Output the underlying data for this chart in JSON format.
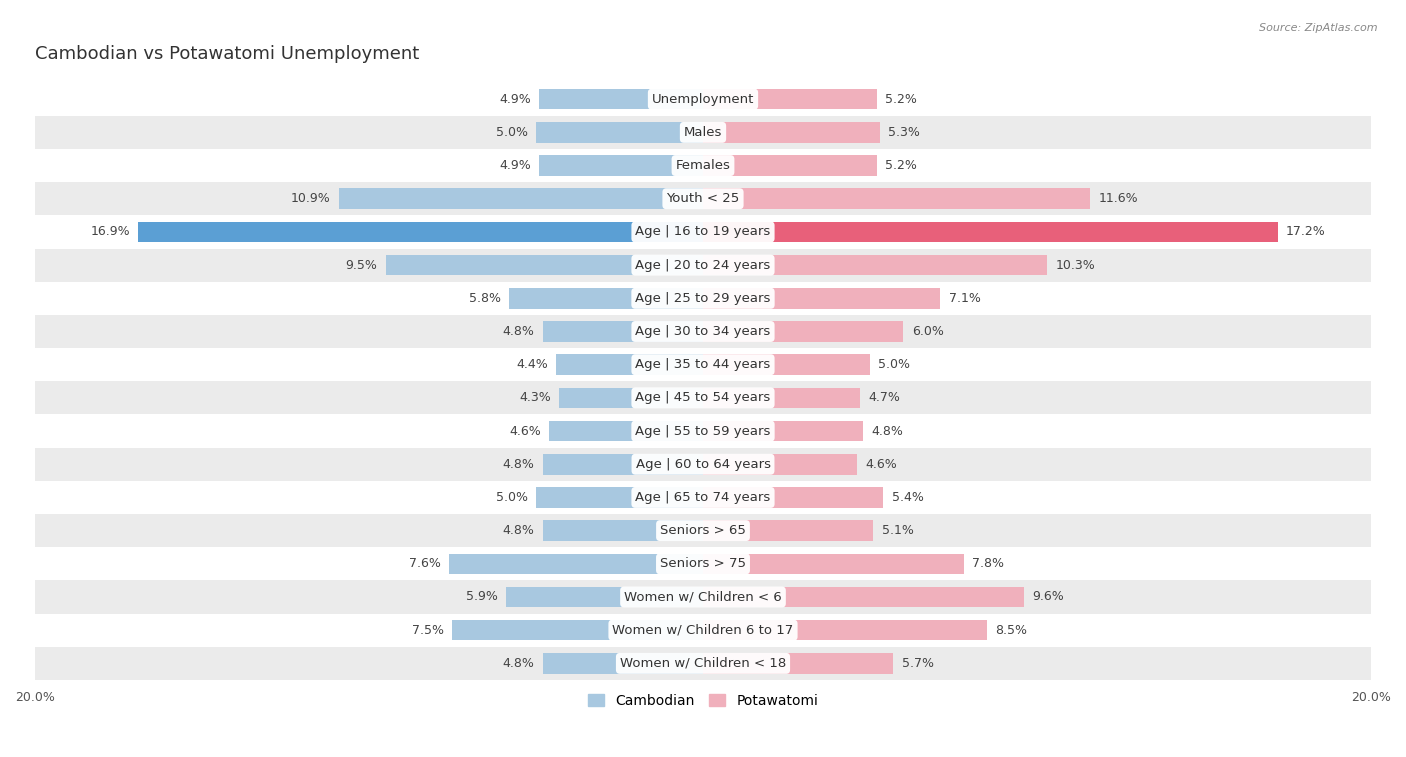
{
  "title": "Cambodian vs Potawatomi Unemployment",
  "source": "Source: ZipAtlas.com",
  "categories": [
    "Unemployment",
    "Males",
    "Females",
    "Youth < 25",
    "Age | 16 to 19 years",
    "Age | 20 to 24 years",
    "Age | 25 to 29 years",
    "Age | 30 to 34 years",
    "Age | 35 to 44 years",
    "Age | 45 to 54 years",
    "Age | 55 to 59 years",
    "Age | 60 to 64 years",
    "Age | 65 to 74 years",
    "Seniors > 65",
    "Seniors > 75",
    "Women w/ Children < 6",
    "Women w/ Children 6 to 17",
    "Women w/ Children < 18"
  ],
  "cambodian": [
    4.9,
    5.0,
    4.9,
    10.9,
    16.9,
    9.5,
    5.8,
    4.8,
    4.4,
    4.3,
    4.6,
    4.8,
    5.0,
    4.8,
    7.6,
    5.9,
    7.5,
    4.8
  ],
  "potawatomi": [
    5.2,
    5.3,
    5.2,
    11.6,
    17.2,
    10.3,
    7.1,
    6.0,
    5.0,
    4.7,
    4.8,
    4.6,
    5.4,
    5.1,
    7.8,
    9.6,
    8.5,
    5.7
  ],
  "cambodian_color": "#a8c8e0",
  "potawatomi_color": "#f0b0bc",
  "cambodian_color_highlight": "#5b9fd4",
  "potawatomi_color_highlight": "#e8607a",
  "background_color": "#ffffff",
  "row_bg_light": "#ffffff",
  "row_bg_dark": "#ebebeb",
  "xlim": 20.0,
  "bar_height": 0.62,
  "title_fontsize": 13,
  "label_fontsize": 9.5,
  "value_fontsize": 9,
  "tick_fontsize": 9,
  "legend_fontsize": 10
}
